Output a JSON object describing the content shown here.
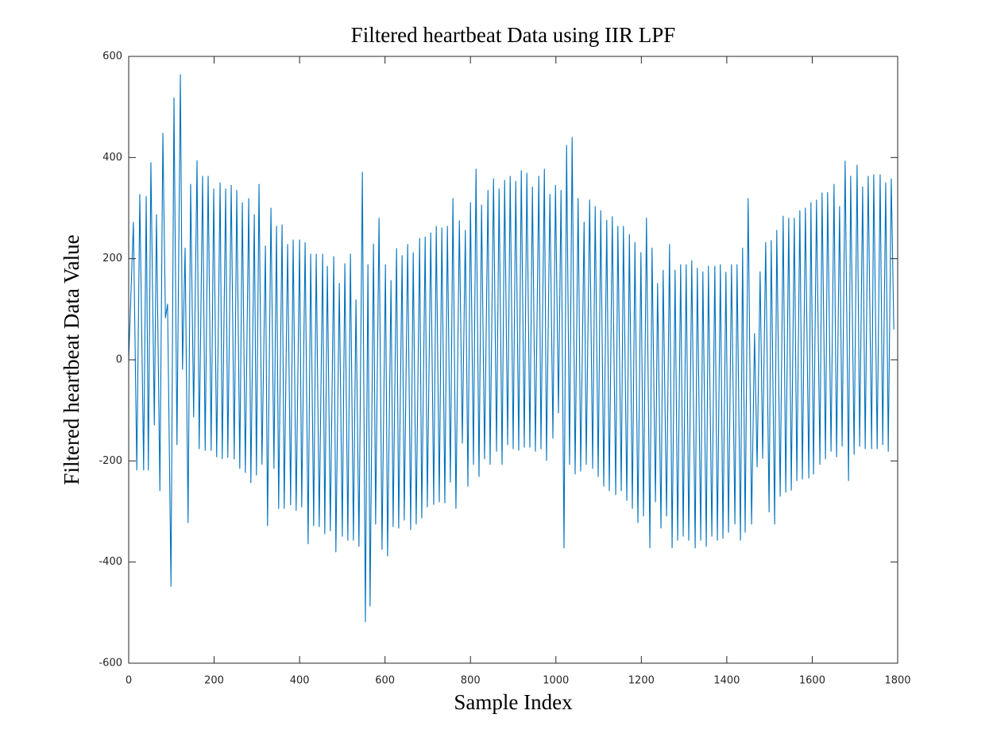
{
  "chart_data": {
    "type": "line",
    "title": "Filtered heartbeat Data using IIR LPF",
    "x_label": "Sample Index",
    "y_label": "Filtered heartbeat Data Value",
    "color": "#0072bd",
    "xlim": [
      0,
      1800
    ],
    "xticks": [
      0,
      200,
      400,
      600,
      800,
      1000,
      1200,
      1400,
      1600,
      1800
    ],
    "ylim": [
      -600,
      600
    ],
    "yticks": [
      -600,
      -400,
      -200,
      0,
      200,
      400,
      600
    ],
    "x": [
      0,
      11,
      19,
      26,
      35,
      41,
      46,
      52,
      60,
      65,
      73,
      80,
      86,
      91,
      99,
      106,
      113,
      121,
      126,
      132,
      139,
      145,
      152,
      160,
      165,
      173,
      179,
      186,
      193,
      199,
      206,
      214,
      219,
      227,
      232,
      240,
      247,
      253,
      260,
      266,
      273,
      281,
      286,
      294,
      299,
      305,
      312,
      320,
      325,
      333,
      340,
      346,
      351,
      359,
      364,
      372,
      379,
      385,
      392,
      400,
      405,
      413,
      420,
      426,
      433,
      439,
      446,
      454,
      459,
      465,
      472,
      480,
      485,
      493,
      500,
      506,
      513,
      519,
      526,
      532,
      539,
      547,
      554,
      560,
      565,
      573,
      578,
      586,
      593,
      601,
      606,
      614,
      619,
      627,
      632,
      640,
      645,
      653,
      660,
      666,
      673,
      681,
      686,
      694,
      699,
      707,
      714,
      720,
      727,
      733,
      740,
      746,
      753,
      759,
      766,
      774,
      781,
      788,
      794,
      800,
      807,
      813,
      820,
      826,
      833,
      841,
      846,
      854,
      861,
      867,
      874,
      880,
      887,
      893,
      900,
      906,
      913,
      919,
      926,
      932,
      939,
      945,
      952,
      960,
      965,
      973,
      978,
      986,
      993,
      999,
      1006,
      1012,
      1019,
      1025,
      1032,
      1038,
      1045,
      1052,
      1058,
      1066,
      1071,
      1079,
      1086,
      1092,
      1099,
      1105,
      1112,
      1119,
      1125,
      1132,
      1140,
      1145,
      1153,
      1158,
      1166,
      1172,
      1179,
      1185,
      1192,
      1199,
      1205,
      1212,
      1220,
      1225,
      1233,
      1238,
      1246,
      1251,
      1259,
      1266,
      1272,
      1279,
      1285,
      1292,
      1298,
      1305,
      1311,
      1318,
      1326,
      1331,
      1339,
      1344,
      1352,
      1357,
      1365,
      1372,
      1378,
      1385,
      1391,
      1398,
      1404,
      1411,
      1419,
      1424,
      1432,
      1437,
      1443,
      1450,
      1458,
      1465,
      1471,
      1478,
      1484,
      1491,
      1499,
      1504,
      1512,
      1517,
      1525,
      1532,
      1538,
      1545,
      1551,
      1558,
      1564,
      1571,
      1577,
      1584,
      1592,
      1597,
      1603,
      1610,
      1618,
      1623,
      1631,
      1636,
      1644,
      1651,
      1657,
      1664,
      1670,
      1677,
      1685,
      1690,
      1698,
      1705,
      1711,
      1718,
      1724,
      1731,
      1739,
      1744,
      1752,
      1759,
      1765,
      1772,
      1778,
      1785,
      1791
    ],
    "values": [
      0,
      272,
      -218,
      327,
      -218,
      323,
      -218,
      390,
      -129,
      287,
      -259,
      448,
      83,
      110,
      -448,
      518,
      -168,
      564,
      -19,
      221,
      -322,
      347,
      -113,
      394,
      -176,
      363,
      -179,
      363,
      -179,
      338,
      -192,
      350,
      -196,
      338,
      -193,
      345,
      -196,
      335,
      -215,
      311,
      -223,
      319,
      -243,
      287,
      -228,
      347,
      -207,
      225,
      -328,
      300,
      -215,
      264,
      -294,
      267,
      -294,
      228,
      -287,
      237,
      -298,
      237,
      -291,
      232,
      -364,
      209,
      -328,
      209,
      -330,
      209,
      -344,
      185,
      -338,
      204,
      -380,
      151,
      -349,
      190,
      -357,
      209,
      -357,
      119,
      -369,
      371,
      -518,
      188,
      -487,
      229,
      -325,
      280,
      -375,
      188,
      -388,
      157,
      -330,
      220,
      -333,
      206,
      -317,
      228,
      -336,
      212,
      -325,
      240,
      -313,
      243,
      -291,
      251,
      -286,
      264,
      -281,
      261,
      -283,
      264,
      -242,
      319,
      -294,
      275,
      -165,
      256,
      -250,
      311,
      -207,
      377,
      -231,
      306,
      -196,
      335,
      -207,
      358,
      -181,
      338,
      -207,
      355,
      -168,
      363,
      -176,
      353,
      -179,
      374,
      -173,
      369,
      -173,
      342,
      -181,
      363,
      -176,
      377,
      -199,
      327,
      -155,
      345,
      -105,
      335,
      -372,
      424,
      -207,
      440,
      -226,
      319,
      -220,
      272,
      -207,
      316,
      -215,
      303,
      -231,
      295,
      -250,
      276,
      -259,
      283,
      -267,
      264,
      -259,
      264,
      -278,
      248,
      -294,
      232,
      -322,
      212,
      -309,
      280,
      -372,
      221,
      -281,
      151,
      -333,
      177,
      -309,
      228,
      -372,
      177,
      -357,
      188,
      -349,
      188,
      -357,
      196,
      -372,
      181,
      -357,
      174,
      -369,
      185,
      -349,
      185,
      -357,
      188,
      -353,
      173,
      -341,
      188,
      -325,
      188,
      -357,
      221,
      -341,
      319,
      -325,
      52,
      -212,
      174,
      -195,
      232,
      -301,
      236,
      -325,
      256,
      -270,
      284,
      -262,
      280,
      -258,
      280,
      -239,
      295,
      -236,
      300,
      -234,
      311,
      -226,
      316,
      -207,
      330,
      -196,
      331,
      -181,
      347,
      -192,
      303,
      -171,
      393,
      -239,
      363,
      -187,
      385,
      -171,
      342,
      -176,
      363,
      -176,
      366,
      -176,
      366,
      -168,
      350,
      -181,
      358,
      60
    ]
  }
}
